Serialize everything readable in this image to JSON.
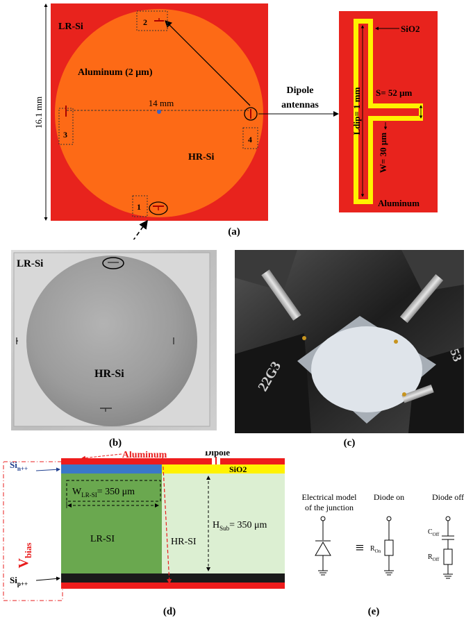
{
  "panel_a": {
    "caption": "(a)",
    "lr_si": "LR-Si",
    "hr_si": "HR-Si",
    "aluminum": "Aluminum (2 μm)",
    "diameter": "14 mm",
    "side": "16.1 mm",
    "labels": [
      "1",
      "2",
      "3",
      "4"
    ],
    "dipole_antennas": [
      "Dipole",
      "antennas"
    ],
    "zoom": {
      "sio2": "SiO2",
      "s": "S= 52 μm",
      "ldip": "Ldip= 1 mm",
      "w": "W= 30 μm",
      "aluminum": "Aluminum"
    },
    "colors": {
      "red": "#e8231d",
      "orange": "#fd6a16",
      "yellow": "#fff200"
    }
  },
  "panel_b": {
    "caption": "(b)",
    "lr_si": "LR-Si",
    "hr_si": "HR-Si"
  },
  "panel_c": {
    "caption": "(c)",
    "label_left": "22G3",
    "label_right": "53"
  },
  "panel_d": {
    "caption": "(d)",
    "aluminum": "Aluminum",
    "dipole": "Dipole",
    "sio2": "SiO2",
    "vbias": "V",
    "vbias_sub": "bias",
    "si_n": "Si",
    "si_n_sub": "n++",
    "si_p": "Si",
    "si_p_sub": "p++",
    "w_lrsi": "W",
    "w_lrsi_sub": "LR-SI",
    "w_lrsi_val": "= 350 μm",
    "h_sub": "H",
    "h_sub_sub": "Sub",
    "h_sub_val": "= 350 μm",
    "lr_si": "LR-SI",
    "hr_si": "HR-SI"
  },
  "panel_e": {
    "caption": "(e)",
    "model": [
      "Electrical model",
      "of the junction"
    ],
    "diode_on": "Diode on",
    "diode_off": "Diode off",
    "r_on": "R",
    "r_on_sub": "On",
    "c_off": "C",
    "c_off_sub": "Off",
    "r_off": "R",
    "r_off_sub": "Off"
  }
}
